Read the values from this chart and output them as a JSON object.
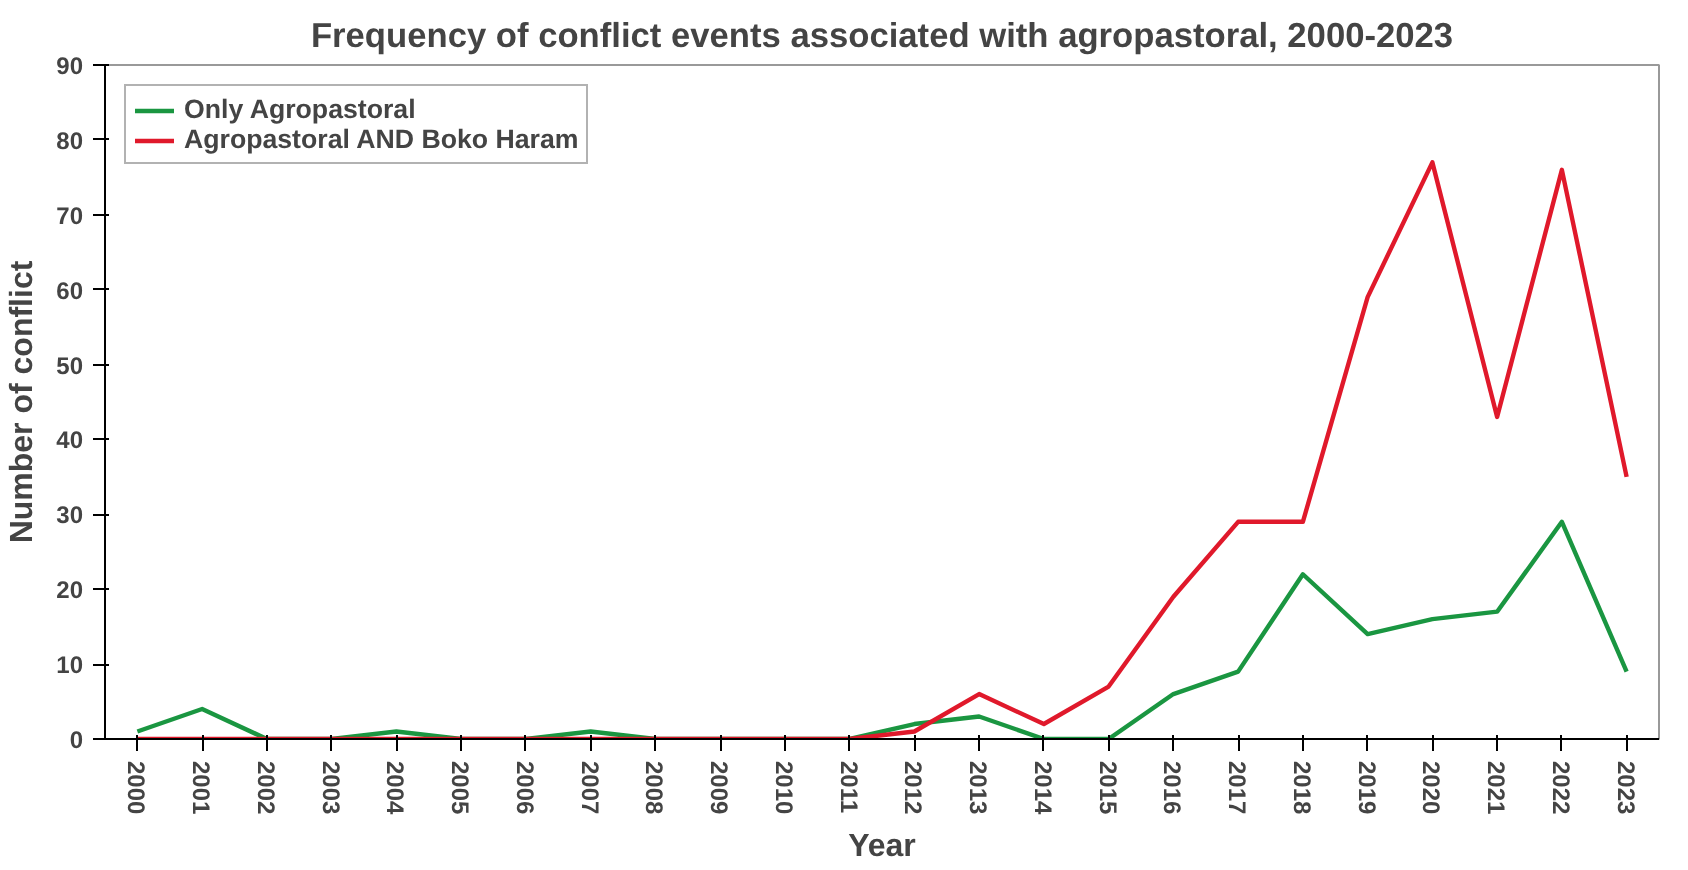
{
  "chart_data": {
    "type": "line",
    "title": "Frequency of conflict events associated with agropastoral, 2000-2023",
    "xlabel": "Year",
    "ylabel": "Number of conflict",
    "categories": [
      "2000",
      "2001",
      "2002",
      "2003",
      "2004",
      "2005",
      "2006",
      "2007",
      "2008",
      "2009",
      "2010",
      "2011",
      "2012",
      "2013",
      "2014",
      "2015",
      "2016",
      "2017",
      "2018",
      "2019",
      "2020",
      "2021",
      "2022",
      "2023"
    ],
    "series": [
      {
        "name": "Only Agropastoral",
        "color": "#1a9641",
        "values": [
          1,
          4,
          0,
          0,
          1,
          0,
          0,
          1,
          0,
          0,
          0,
          0,
          2,
          3,
          0,
          0,
          6,
          9,
          22,
          14,
          16,
          17,
          29,
          9
        ]
      },
      {
        "name": "Agropastoral AND Boko Haram",
        "color": "#e0192b",
        "values": [
          0,
          0,
          0,
          0,
          0,
          0,
          0,
          0,
          0,
          0,
          0,
          0,
          1,
          6,
          2,
          7,
          19,
          29,
          29,
          59,
          77,
          43,
          76,
          35
        ]
      }
    ],
    "ylim": [
      0,
      90
    ],
    "yticks": [
      0,
      10,
      20,
      30,
      40,
      50,
      60,
      70,
      80,
      90
    ],
    "grid": false,
    "legend": "top left",
    "marker": "none",
    "line_style": "solid"
  }
}
